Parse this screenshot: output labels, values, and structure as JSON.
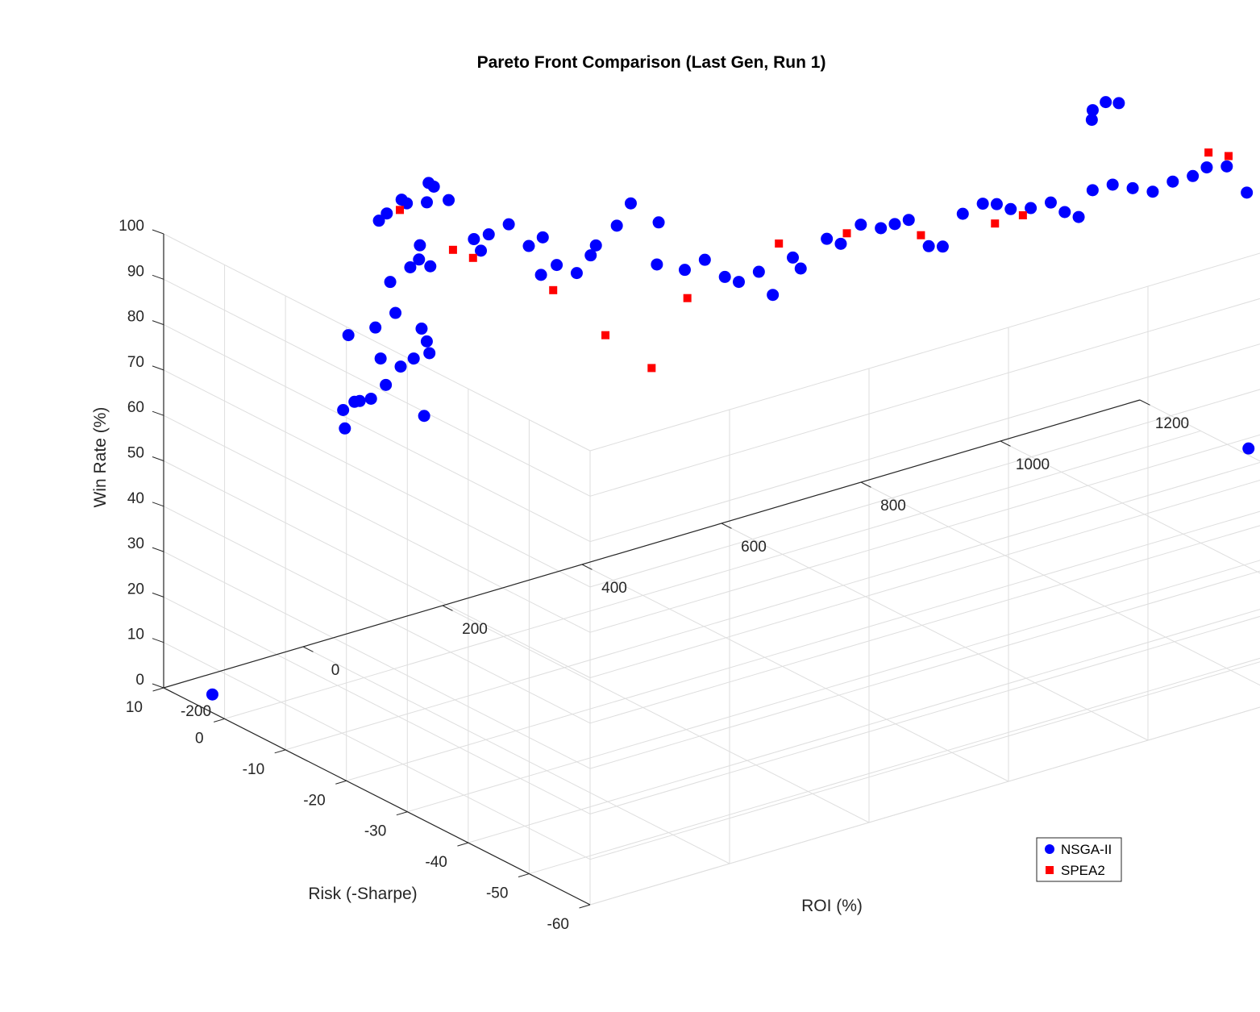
{
  "chart_data": {
    "type": "scatter3d",
    "title": "Pareto Front Comparison (Last Gen, Run 1)",
    "xlabel": "ROI (%)",
    "ylabel": "Risk (-Sharpe)",
    "zlabel": "Win Rate (%)",
    "xlim": [
      -200,
      1200
    ],
    "ylim": [
      -60,
      10
    ],
    "zlim": [
      0,
      100
    ],
    "xticks": [
      "-200",
      "0",
      "200",
      "400",
      "600",
      "800",
      "1000",
      "1200"
    ],
    "yticks": [
      "-60",
      "-50",
      "-40",
      "-30",
      "-20",
      "-10",
      "0",
      "10"
    ],
    "zticks": [
      "0",
      "10",
      "20",
      "30",
      "40",
      "50",
      "60",
      "70",
      "80",
      "90",
      "100"
    ],
    "grid": true,
    "legend_position": "bottom-right",
    "series": [
      {
        "name": "NSGA-II",
        "color": "#0000ff",
        "marker": "circle",
        "points": [
          [
            -200,
            2,
            4
          ],
          [
            -10,
            2,
            54
          ],
          [
            5,
            4,
            56
          ],
          [
            10,
            0,
            61
          ],
          [
            20,
            3,
            58
          ],
          [
            40,
            1,
            62
          ],
          [
            30,
            5,
            56
          ],
          [
            60,
            -3,
            57
          ],
          [
            80,
            1,
            66
          ],
          [
            50,
            3,
            66
          ],
          [
            70,
            2,
            64
          ],
          [
            90,
            0,
            70
          ],
          [
            60,
            5,
            71
          ],
          [
            80,
            4,
            74
          ],
          [
            100,
            2,
            71
          ],
          [
            120,
            3,
            64
          ],
          [
            30,
            6,
            70
          ],
          [
            90,
            6,
            79
          ],
          [
            110,
            5,
            82
          ],
          [
            130,
            4,
            82
          ],
          [
            140,
            7,
            81
          ],
          [
            150,
            8,
            83
          ],
          [
            100,
            9,
            90
          ],
          [
            120,
            10,
            90
          ],
          [
            140,
            9,
            92
          ],
          [
            160,
            8,
            92
          ],
          [
            170,
            8,
            95
          ],
          [
            180,
            10,
            94
          ],
          [
            150,
            11,
            91
          ],
          [
            200,
            9,
            90
          ],
          [
            210,
            6,
            83
          ],
          [
            220,
            6,
            80
          ],
          [
            240,
            7,
            82
          ],
          [
            260,
            6,
            84
          ],
          [
            280,
            5,
            79
          ],
          [
            300,
            5,
            80
          ],
          [
            320,
            5,
            73
          ],
          [
            280,
            3,
            74
          ],
          [
            340,
            4,
            71
          ],
          [
            360,
            4,
            74
          ],
          [
            350,
            2,
            78
          ],
          [
            380,
            2,
            81
          ],
          [
            400,
            2,
            85
          ],
          [
            420,
            0,
            72
          ],
          [
            440,
            2,
            79
          ],
          [
            460,
            0,
            69
          ],
          [
            480,
            -1,
            71
          ],
          [
            500,
            -2,
            67
          ],
          [
            520,
            -2,
            65
          ],
          [
            540,
            -3,
            67
          ],
          [
            560,
            -3,
            61
          ],
          [
            580,
            -4,
            69
          ],
          [
            600,
            -3,
            65
          ],
          [
            620,
            -5,
            72
          ],
          [
            640,
            -5,
            70
          ],
          [
            660,
            -6,
            74
          ],
          [
            680,
            -7,
            73
          ],
          [
            700,
            -7,
            73
          ],
          [
            720,
            -7,
            73
          ],
          [
            740,
            -8,
            67
          ],
          [
            760,
            -8,
            66
          ],
          [
            780,
            -9,
            73
          ],
          [
            800,
            -10,
            75
          ],
          [
            820,
            -10,
            74
          ],
          [
            840,
            -10,
            72
          ],
          [
            860,
            -11,
            72
          ],
          [
            880,
            -12,
            73
          ],
          [
            900,
            -12,
            70
          ],
          [
            920,
            -12,
            68
          ],
          [
            940,
            -12,
            73
          ],
          [
            960,
            -13,
            74
          ],
          [
            980,
            -14,
            73
          ],
          [
            1000,
            -15,
            72
          ],
          [
            1020,
            -16,
            74
          ],
          [
            1040,
            -17,
            75
          ],
          [
            1060,
            -17,
            76
          ],
          [
            1080,
            -18,
            76
          ],
          [
            1000,
            -5,
            81
          ],
          [
            1010,
            -4,
            82
          ],
          [
            1020,
            -5,
            84
          ],
          [
            1030,
            -6,
            84
          ],
          [
            1100,
            -19,
            70
          ],
          [
            1050,
            -25,
            20
          ]
        ]
      },
      {
        "name": "SPEA2",
        "color": "#ff0000",
        "marker": "square",
        "points": [
          [
            130,
            9,
            91
          ],
          [
            180,
            6,
            82
          ],
          [
            200,
            5,
            80
          ],
          [
            280,
            1,
            72
          ],
          [
            320,
            -3,
            63
          ],
          [
            360,
            -6,
            56
          ],
          [
            420,
            -5,
            68
          ],
          [
            560,
            -4,
            73
          ],
          [
            640,
            -6,
            73
          ],
          [
            720,
            -9,
            71
          ],
          [
            800,
            -12,
            72
          ],
          [
            840,
            -12,
            72
          ],
          [
            1080,
            -15,
            77
          ],
          [
            1100,
            -16,
            76
          ]
        ]
      }
    ]
  }
}
